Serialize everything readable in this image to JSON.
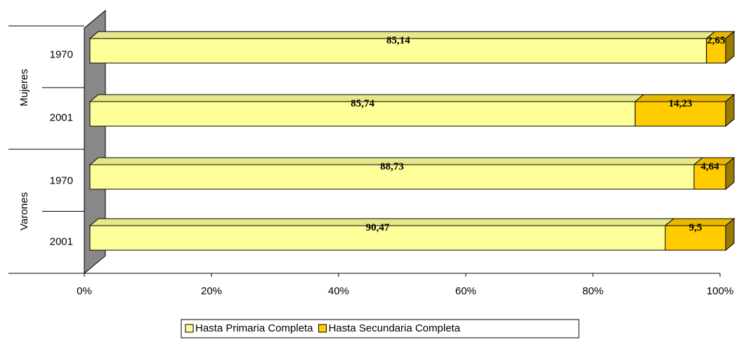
{
  "chart_data": {
    "type": "bar",
    "orientation": "horizontal",
    "stacking": "percent",
    "groups": [
      {
        "name": "Mujeres",
        "categories": [
          "1970",
          "2001"
        ]
      },
      {
        "name": "Varones",
        "categories": [
          "1970",
          "2001"
        ]
      }
    ],
    "series": [
      {
        "name": "Hasta Primaria Completa",
        "color": "#ffff99",
        "values": [
          85.14,
          85.74,
          88.73,
          90.47
        ],
        "value_labels": [
          "85,14",
          "85,74",
          "88,73",
          "90,47"
        ]
      },
      {
        "name": "Hasta Secundaria Completa",
        "color": "#ffcc00",
        "values": [
          2.65,
          14.23,
          4.64,
          9.5
        ],
        "value_labels": [
          "2,65",
          "14,23",
          "4,64",
          "9,5"
        ]
      }
    ],
    "xlim": [
      0,
      100
    ],
    "xticks": [
      {
        "value": 0,
        "label": "0%"
      },
      {
        "value": 20,
        "label": "20%"
      },
      {
        "value": 40,
        "label": "40%"
      },
      {
        "value": 60,
        "label": "60%"
      },
      {
        "value": 80,
        "label": "80%"
      },
      {
        "value": 100,
        "label": "100%"
      }
    ],
    "legend": "bottom"
  }
}
